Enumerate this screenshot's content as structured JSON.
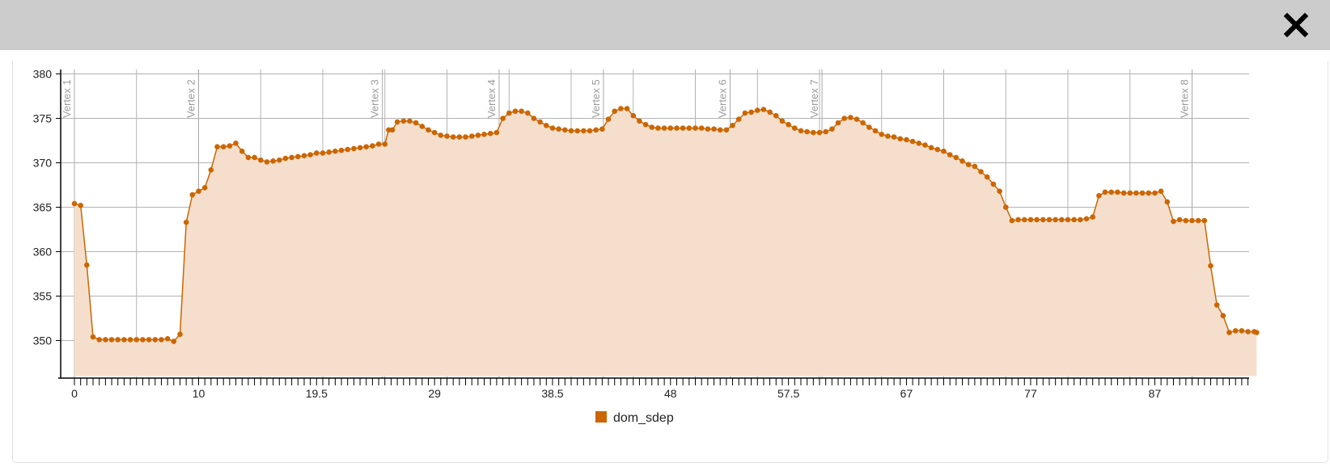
{
  "dialog": {
    "close_icon": "close-icon"
  },
  "chart_data": {
    "type": "area",
    "title": "",
    "xlabel": "",
    "ylabel": "",
    "ylim": [
      346,
      380.5
    ],
    "xlim": [
      -1,
      93.5
    ],
    "x_ticks": [
      "0",
      "10",
      "19.5",
      "29",
      "38.5",
      "48",
      "57.5",
      "67",
      "77",
      "87"
    ],
    "y_ticks": [
      350,
      355,
      360,
      365,
      370,
      375,
      380
    ],
    "grid": true,
    "legend": "bottom-center",
    "colors": {
      "line": "#cc6600",
      "fill": "#f5dfcc",
      "grid": "#b3b3b3",
      "vertex_text": "#9a9a9a"
    },
    "vertices": [
      {
        "label": "Vertex 1",
        "x": 0
      },
      {
        "label": "Vertex 2",
        "x": 10
      },
      {
        "label": "Vertex 3",
        "x": 24.8
      },
      {
        "label": "Vertex 4",
        "x": 34.2
      },
      {
        "label": "Vertex 5",
        "x": 42.6
      },
      {
        "label": "Vertex 6",
        "x": 52.8
      },
      {
        "label": "Vertex 7",
        "x": 60.2
      },
      {
        "label": "Vertex 8",
        "x": 90
      }
    ],
    "series": [
      {
        "name": "dom_sdep",
        "points": [
          [
            0,
            365.4
          ],
          [
            0.5,
            365.2
          ],
          [
            1,
            358.5
          ],
          [
            1.5,
            350.4
          ],
          [
            2,
            350.1
          ],
          [
            2.5,
            350.1
          ],
          [
            3,
            350.1
          ],
          [
            3.5,
            350.1
          ],
          [
            4,
            350.1
          ],
          [
            4.5,
            350.1
          ],
          [
            5,
            350.1
          ],
          [
            5.5,
            350.1
          ],
          [
            6,
            350.1
          ],
          [
            6.5,
            350.1
          ],
          [
            7,
            350.1
          ],
          [
            7.5,
            350.2
          ],
          [
            8,
            349.9
          ],
          [
            8.5,
            350.7
          ],
          [
            9,
            363.3
          ],
          [
            9.5,
            366.4
          ],
          [
            10,
            366.8
          ],
          [
            10.5,
            367.2
          ],
          [
            11,
            369.2
          ],
          [
            11.5,
            371.8
          ],
          [
            12,
            371.8
          ],
          [
            12.5,
            371.9
          ],
          [
            13,
            372.2
          ],
          [
            13.5,
            371.3
          ],
          [
            14,
            370.6
          ],
          [
            14.5,
            370.6
          ],
          [
            15,
            370.3
          ],
          [
            15.5,
            370.1
          ],
          [
            16,
            370.2
          ],
          [
            16.5,
            370.3
          ],
          [
            17,
            370.5
          ],
          [
            17.5,
            370.6
          ],
          [
            18,
            370.7
          ],
          [
            18.5,
            370.8
          ],
          [
            19,
            370.9
          ],
          [
            19.5,
            371.1
          ],
          [
            20,
            371.1
          ],
          [
            20.5,
            371.2
          ],
          [
            21,
            371.3
          ],
          [
            21.5,
            371.4
          ],
          [
            22,
            371.5
          ],
          [
            22.5,
            371.6
          ],
          [
            23,
            371.7
          ],
          [
            23.5,
            371.8
          ],
          [
            24,
            371.9
          ],
          [
            24.5,
            372.1
          ],
          [
            25,
            372.1
          ],
          [
            25.3,
            373.7
          ],
          [
            25.6,
            373.7
          ],
          [
            26,
            374.6
          ],
          [
            26.5,
            374.7
          ],
          [
            27,
            374.7
          ],
          [
            27.5,
            374.5
          ],
          [
            28,
            374.1
          ],
          [
            28.5,
            373.7
          ],
          [
            29,
            373.4
          ],
          [
            29.5,
            373.1
          ],
          [
            30,
            373
          ],
          [
            30.5,
            372.9
          ],
          [
            31,
            372.9
          ],
          [
            31.5,
            372.9
          ],
          [
            32,
            373
          ],
          [
            32.5,
            373.1
          ],
          [
            33,
            373.2
          ],
          [
            33.5,
            373.3
          ],
          [
            34,
            373.4
          ],
          [
            34.5,
            375
          ],
          [
            35,
            375.6
          ],
          [
            35.5,
            375.8
          ],
          [
            36,
            375.8
          ],
          [
            36.5,
            375.6
          ],
          [
            37,
            375
          ],
          [
            37.5,
            374.6
          ],
          [
            38,
            374.2
          ],
          [
            38.5,
            373.9
          ],
          [
            39,
            373.8
          ],
          [
            39.5,
            373.7
          ],
          [
            40,
            373.6
          ],
          [
            40.5,
            373.6
          ],
          [
            41,
            373.6
          ],
          [
            41.5,
            373.6
          ],
          [
            42,
            373.7
          ],
          [
            42.5,
            373.8
          ],
          [
            43,
            374.9
          ],
          [
            43.5,
            375.8
          ],
          [
            44,
            376.1
          ],
          [
            44.5,
            376.1
          ],
          [
            45,
            375.3
          ],
          [
            45.5,
            374.7
          ],
          [
            46,
            374.3
          ],
          [
            46.5,
            374
          ],
          [
            47,
            373.9
          ],
          [
            47.5,
            373.9
          ],
          [
            48,
            373.9
          ],
          [
            48.5,
            373.9
          ],
          [
            49,
            373.9
          ],
          [
            49.5,
            373.9
          ],
          [
            50,
            373.9
          ],
          [
            50.5,
            373.9
          ],
          [
            51,
            373.8
          ],
          [
            51.5,
            373.8
          ],
          [
            52,
            373.7
          ],
          [
            52.5,
            373.7
          ],
          [
            53,
            374.2
          ],
          [
            53.5,
            374.9
          ],
          [
            54,
            375.6
          ],
          [
            54.5,
            375.7
          ],
          [
            55,
            375.9
          ],
          [
            55.5,
            376
          ],
          [
            56,
            375.7
          ],
          [
            56.5,
            375.3
          ],
          [
            57,
            374.7
          ],
          [
            57.5,
            374.3
          ],
          [
            58,
            373.9
          ],
          [
            58.5,
            373.6
          ],
          [
            59,
            373.5
          ],
          [
            59.5,
            373.4
          ],
          [
            60,
            373.4
          ],
          [
            60.5,
            373.5
          ],
          [
            61,
            373.8
          ],
          [
            61.5,
            374.5
          ],
          [
            62,
            375
          ],
          [
            62.5,
            375.1
          ],
          [
            63,
            374.9
          ],
          [
            63.5,
            374.5
          ],
          [
            64,
            374
          ],
          [
            64.5,
            373.6
          ],
          [
            65,
            373.2
          ],
          [
            65.5,
            373
          ],
          [
            66,
            372.9
          ],
          [
            66.5,
            372.7
          ],
          [
            67,
            372.6
          ],
          [
            67.5,
            372.4
          ],
          [
            68,
            372.2
          ],
          [
            68.5,
            372
          ],
          [
            69,
            371.7
          ],
          [
            69.5,
            371.5
          ],
          [
            70,
            371.3
          ],
          [
            70.5,
            370.9
          ],
          [
            71,
            370.6
          ],
          [
            71.5,
            370.2
          ],
          [
            72,
            369.8
          ],
          [
            72.5,
            369.6
          ],
          [
            73,
            369
          ],
          [
            73.5,
            368.4
          ],
          [
            74,
            367.6
          ],
          [
            74.5,
            366.8
          ],
          [
            75,
            365
          ],
          [
            75.5,
            363.5
          ],
          [
            76,
            363.6
          ],
          [
            76.5,
            363.6
          ],
          [
            77,
            363.6
          ],
          [
            77.5,
            363.6
          ],
          [
            78,
            363.6
          ],
          [
            78.5,
            363.6
          ],
          [
            79,
            363.6
          ],
          [
            79.5,
            363.6
          ],
          [
            80,
            363.6
          ],
          [
            80.5,
            363.6
          ],
          [
            81,
            363.6
          ],
          [
            81.5,
            363.7
          ],
          [
            82,
            363.9
          ],
          [
            82.5,
            366.3
          ],
          [
            83,
            366.7
          ],
          [
            83.5,
            366.7
          ],
          [
            84,
            366.7
          ],
          [
            84.5,
            366.6
          ],
          [
            85,
            366.6
          ],
          [
            85.5,
            366.6
          ],
          [
            86,
            366.6
          ],
          [
            86.5,
            366.6
          ],
          [
            87,
            366.6
          ],
          [
            87.5,
            366.8
          ],
          [
            88,
            365.6
          ],
          [
            88.5,
            363.4
          ],
          [
            89,
            363.6
          ],
          [
            89.5,
            363.5
          ],
          [
            90,
            363.5
          ],
          [
            90.5,
            363.5
          ],
          [
            91,
            363.5
          ],
          [
            91.5,
            358.4
          ],
          [
            92,
            354
          ],
          [
            92.5,
            352.8
          ],
          [
            93,
            350.9
          ],
          [
            93.5,
            351.1
          ],
          [
            94,
            351.1
          ],
          [
            94.5,
            351
          ],
          [
            95,
            351
          ],
          [
            95.2,
            350.9
          ]
        ]
      }
    ]
  }
}
